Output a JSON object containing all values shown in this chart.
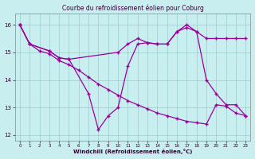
{
  "title": "Courbe du refroidissement éolien pour Coburg",
  "xlabel": "Windchill (Refroidissement éolien,°C)",
  "bg_color": "#c8eef0",
  "line_color": "#990099",
  "grid_color": "#99cccc",
  "xlim": [
    -0.5,
    23.5
  ],
  "ylim": [
    11.8,
    16.4
  ],
  "yticks": [
    12,
    13,
    14,
    15,
    16
  ],
  "xticks": [
    0,
    1,
    2,
    3,
    4,
    5,
    6,
    7,
    8,
    9,
    10,
    11,
    12,
    13,
    14,
    15,
    16,
    17,
    18,
    19,
    20,
    21,
    22,
    23
  ],
  "line1_x": [
    0,
    1,
    2,
    3,
    4,
    5,
    6,
    7,
    8,
    9,
    10,
    11,
    12,
    13,
    14,
    15,
    16,
    17,
    18,
    19,
    20,
    21,
    22,
    23
  ],
  "line1_y": [
    16.0,
    15.3,
    15.05,
    14.95,
    14.7,
    14.55,
    14.35,
    14.1,
    13.85,
    13.65,
    13.45,
    13.25,
    13.1,
    12.95,
    12.8,
    12.7,
    12.6,
    12.5,
    12.45,
    12.4,
    13.1,
    13.05,
    12.8,
    12.7
  ],
  "line2_x": [
    0,
    1,
    3,
    4,
    5,
    10,
    11,
    12,
    13,
    14,
    15,
    16,
    17,
    18,
    19,
    20,
    21,
    22,
    23
  ],
  "line2_y": [
    16.0,
    15.3,
    15.05,
    14.8,
    14.75,
    15.0,
    15.3,
    15.5,
    15.35,
    15.3,
    15.3,
    15.75,
    15.9,
    15.75,
    15.5,
    15.5,
    15.5,
    15.5,
    15.5
  ],
  "line3_x": [
    0,
    1,
    3,
    4,
    5,
    7,
    8,
    9,
    10,
    11,
    12,
    13,
    14,
    15,
    16,
    17,
    18,
    19,
    20,
    21,
    22,
    23
  ],
  "line3_y": [
    16.0,
    15.3,
    15.05,
    14.8,
    14.75,
    13.5,
    12.2,
    12.7,
    13.0,
    14.5,
    15.3,
    15.35,
    15.3,
    15.3,
    15.75,
    16.0,
    15.75,
    14.0,
    13.5,
    13.1,
    13.1,
    12.7
  ]
}
